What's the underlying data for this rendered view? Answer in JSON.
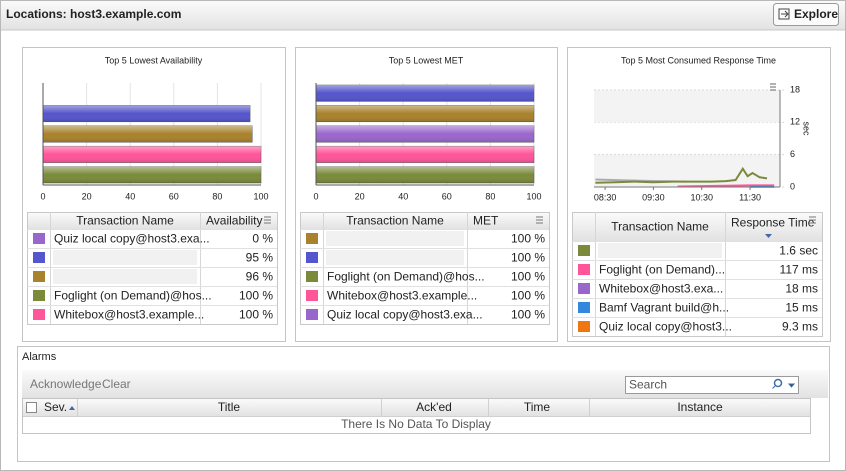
{
  "header": {
    "title": "Locations: host3.example.com",
    "button": "Explore"
  },
  "panels": [
    {
      "title": "Top 5 Lowest Availability",
      "chart": {
        "type": "bar",
        "values": [
          0,
          95,
          96,
          100,
          100
        ],
        "colors": [
          "#9966cc",
          "#5555cc",
          "#a8822c",
          "#ff5599",
          "#7a8a3a"
        ],
        "xlim": [
          0,
          100
        ],
        "xticks": [
          0,
          20,
          40,
          60,
          80,
          100
        ],
        "grid": true
      },
      "table": {
        "columns": [
          "Transaction Name",
          "Availability"
        ],
        "rows": [
          {
            "color": "#9966cc",
            "name": "Quiz local copy@host3.exa...",
            "value": "0 %"
          },
          {
            "color": "#5555cc",
            "name": null,
            "value": "95 %"
          },
          {
            "color": "#a8822c",
            "name": null,
            "value": "96 %"
          },
          {
            "color": "#7a8a3a",
            "name": "Foglight (on Demand)@hos...",
            "value": "100 %"
          },
          {
            "color": "#ff5599",
            "name": "Whitebox@host3.example...",
            "value": "100 %"
          }
        ]
      }
    },
    {
      "title": "Top 5 Lowest MET",
      "chart": {
        "type": "bar",
        "values": [
          100,
          100,
          100,
          100,
          100
        ],
        "colors": [
          "#5555cc",
          "#a8822c",
          "#9966cc",
          "#ff5599",
          "#7a8a3a"
        ],
        "xlim": [
          0,
          100
        ],
        "xticks": [
          0,
          20,
          40,
          60,
          80,
          100
        ],
        "grid": true
      },
      "table": {
        "columns": [
          "Transaction Name",
          "MET"
        ],
        "rows": [
          {
            "color": "#a8822c",
            "name": null,
            "value": "100 %"
          },
          {
            "color": "#5555cc",
            "name": null,
            "value": "100 %"
          },
          {
            "color": "#7a8a3a",
            "name": "Foglight (on Demand)@hos...",
            "value": "100 %"
          },
          {
            "color": "#ff5599",
            "name": "Whitebox@host3.example...",
            "value": "100 %"
          },
          {
            "color": "#9966cc",
            "name": "Quiz local copy@host3.exa...",
            "value": "100 %"
          }
        ]
      }
    },
    {
      "title": "Top 5 Most Consumed Response Time",
      "chart": {
        "type": "line",
        "xlim": [
          8.27,
          12.12
        ],
        "xticks": [
          {
            "value": 8.5,
            "label": "08:30"
          },
          {
            "value": 9.5,
            "label": "09:30"
          },
          {
            "value": 10.5,
            "label": "10:30"
          },
          {
            "value": 11.5,
            "label": "11:30"
          }
        ],
        "ylim": [
          0,
          18
        ],
        "yticks": [
          0,
          6,
          12,
          18
        ],
        "ylabel": "sec",
        "series": [
          {
            "color": "#aaaaaa",
            "x": [
              8.3,
              9.0,
              9.6,
              10.2
            ],
            "values": [
              1.4,
              1.2,
              1.1,
              1.0
            ]
          },
          {
            "color": "#7a8a3a",
            "x": [
              8.3,
              8.7,
              9.1,
              9.5,
              9.9,
              10.3,
              10.7,
              11.0,
              11.2,
              11.35,
              11.45,
              11.55,
              11.7,
              11.85
            ],
            "values": [
              0.8,
              0.9,
              1.0,
              0.9,
              1.0,
              1.0,
              1.0,
              1.1,
              1.3,
              3.4,
              2.0,
              2.6,
              1.8,
              1.6
            ]
          },
          {
            "color": "#ff5599",
            "x": [
              10.0,
              10.8,
              11.5,
              12.0
            ],
            "values": [
              0.1,
              0.2,
              0.3,
              0.3
            ]
          },
          {
            "color": "#3388dd",
            "x": [
              11.5,
              12.0
            ],
            "values": [
              0.05,
              0.05
            ]
          }
        ]
      },
      "table": {
        "columns": [
          "Transaction Name",
          "Response Time"
        ],
        "rows": [
          {
            "color": "#7a8a3a",
            "name": null,
            "value": "1.6 sec"
          },
          {
            "color": "#ff5599",
            "name": "Foglight (on Demand)...",
            "value": "117 ms"
          },
          {
            "color": "#9966cc",
            "name": "Whitebox@host3.exa...",
            "value": "18 ms"
          },
          {
            "color": "#3388dd",
            "name": "Bamf Vagrant build@h...",
            "value": "15 ms"
          },
          {
            "color": "#ee7711",
            "name": "Quiz local copy@host3...",
            "value": "9.3 ms"
          }
        ]
      }
    }
  ],
  "alarms": {
    "title": "Alarms",
    "actions": [
      "Acknowledge",
      "Clear"
    ],
    "search": "Search",
    "columns": [
      "Sev.",
      "Title",
      "Ack'ed",
      "Time",
      "Instance"
    ],
    "empty": "There Is No Data To Display"
  }
}
